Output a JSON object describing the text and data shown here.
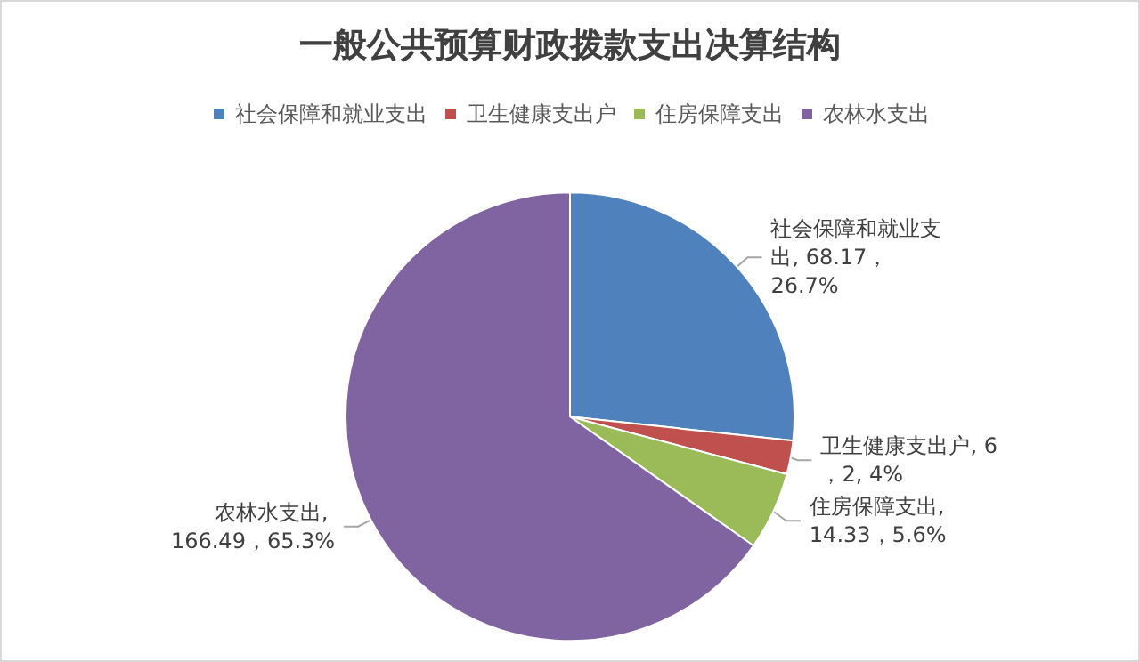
{
  "chart_data": {
    "type": "pie",
    "title": "一般公共预算财政拨款支出决算结构",
    "categories": [
      "社会保障和就业支出",
      "卫生健康支出户",
      "住房保障支出",
      "农林水支出"
    ],
    "values": [
      68.17,
      6.2,
      14.33,
      166.49
    ],
    "colors": [
      "#4f81bd",
      "#c0504d",
      "#9bbb59",
      "#8064a2"
    ],
    "value_labels": [
      "社会保障和就业支出, 68.17，26.7%",
      "卫生健康支出户, 6，2, 4%",
      "住房保障支出, 14.33，5.6%",
      "农林水支出, 166.49，65.3%"
    ],
    "legend": "top"
  }
}
